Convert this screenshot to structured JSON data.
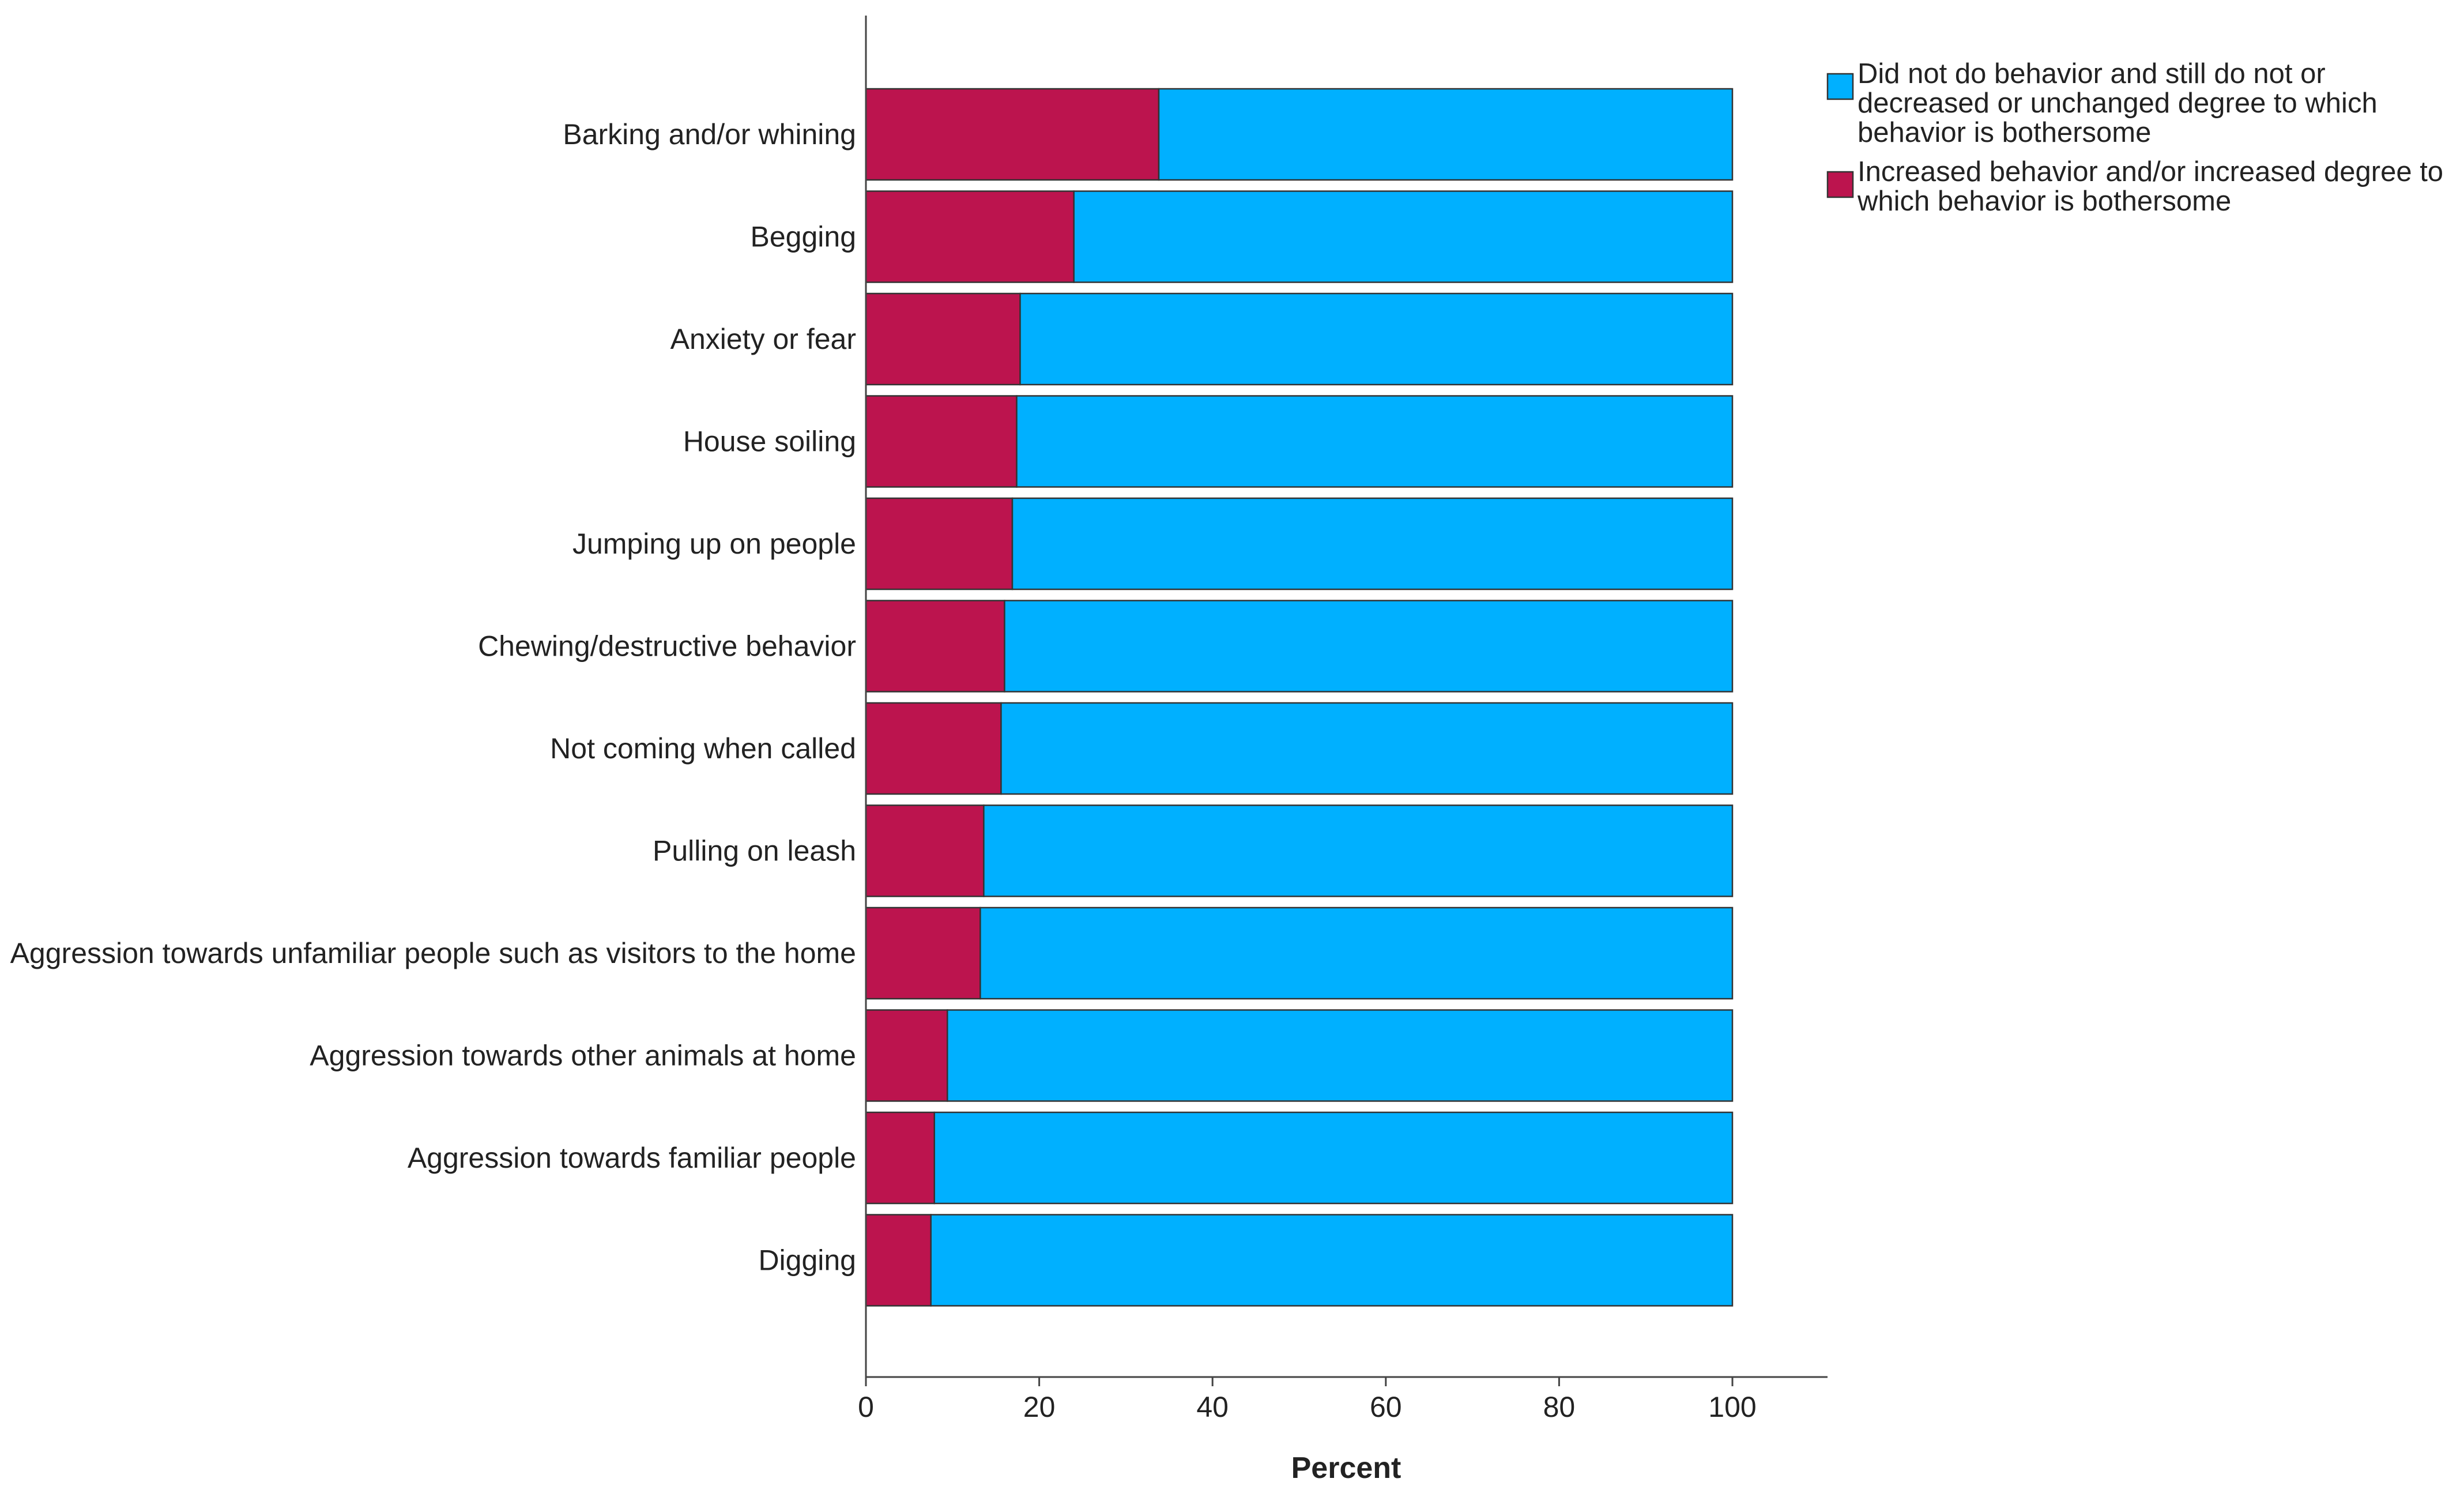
{
  "chart_data": {
    "type": "bar",
    "orientation": "horizontal",
    "stacked": true,
    "title": "",
    "xlabel": "Percent",
    "ylabel": "",
    "xlim": [
      0,
      110
    ],
    "xticks": [
      0,
      20,
      40,
      60,
      80,
      100
    ],
    "grid": false,
    "legend_position": "top-right",
    "categories": [
      "Barking and/or whining",
      "Begging",
      "Anxiety or fear",
      "House soiling",
      "Jumping up on people",
      "Chewing/destructive behavior",
      "Not coming when called",
      "Pulling on leash",
      "Aggression towards unfamiliar people such as visitors to the home",
      "Aggression towards other animals at home",
      "Aggression towards familiar people",
      "Digging"
    ],
    "series": [
      {
        "name": "Increased behavior and/or increased degree to which behavior is bothersome",
        "legend_lines": [
          "Increased behavior and/or increased degree to",
          "which behavior is bothersome"
        ],
        "color": "#BC144E",
        "values": [
          33.8,
          24.0,
          17.8,
          17.4,
          16.9,
          16.0,
          15.6,
          13.6,
          13.2,
          9.4,
          7.9,
          7.5
        ]
      },
      {
        "name": "Did not do behavior and still do not or decreased or unchanged degree to which behavior is bothersome",
        "legend_lines": [
          "Did not do behavior and still do not or",
          "decreased or unchanged degree to which",
          "behavior is bothersome"
        ],
        "color": "#00B0FF",
        "values": [
          66.2,
          76.0,
          82.2,
          82.6,
          83.1,
          84.0,
          84.4,
          86.4,
          86.8,
          90.6,
          92.1,
          92.5
        ]
      }
    ],
    "legend_order": [
      1,
      0
    ]
  }
}
